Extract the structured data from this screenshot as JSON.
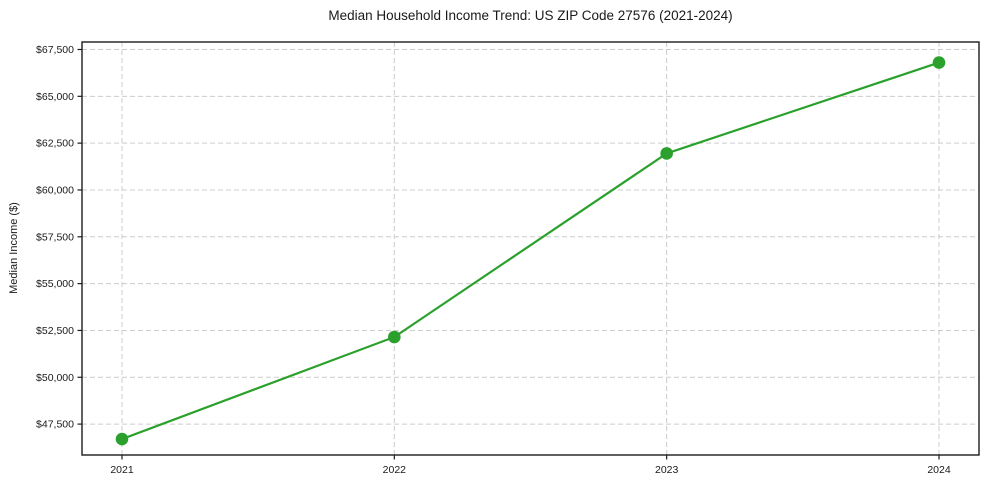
{
  "chart_data": {
    "type": "line",
    "title": "Median Household Income Trend: US ZIP Code 27576 (2021-2024)",
    "xlabel": "",
    "ylabel": "Median Income ($)",
    "categories": [
      "2021",
      "2022",
      "2023",
      "2024"
    ],
    "series": [
      {
        "name": "Median Household Income",
        "values": [
          46700,
          52150,
          61950,
          66800
        ]
      }
    ],
    "ylim": [
      45850,
      67900
    ],
    "y_ticks": [
      {
        "value": 47500,
        "label": "$47,500"
      },
      {
        "value": 50000,
        "label": "$50,000"
      },
      {
        "value": 52500,
        "label": "$52,500"
      },
      {
        "value": 55000,
        "label": "$55,000"
      },
      {
        "value": 57500,
        "label": "$57,500"
      },
      {
        "value": 60000,
        "label": "$60,000"
      },
      {
        "value": 62500,
        "label": "$62,500"
      },
      {
        "value": 65000,
        "label": "$65,000"
      },
      {
        "value": 67500,
        "label": "$67,500"
      }
    ],
    "grid": true,
    "grid_style": "dashed",
    "legend": null
  },
  "style": {
    "line_color": "#2ca02c",
    "marker_color": "#2ca02c",
    "grid_color": "#cccccc",
    "spine_color": "#1c1c1c",
    "text_color": "#1a1a1a",
    "background_color": "#ffffff"
  }
}
